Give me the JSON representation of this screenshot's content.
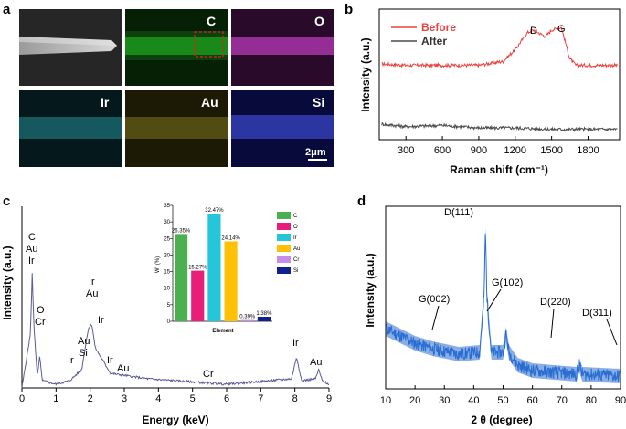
{
  "panels": {
    "a": "a",
    "b": "b",
    "c": "c",
    "d": "d"
  },
  "colors": {
    "raman_before": "#e8433f",
    "raman_after": "#4a4a4a",
    "xrd": "#2a6dd2"
  },
  "panel_a": {
    "maps": [
      {
        "label": "",
        "kind": "sem"
      },
      {
        "label": "C",
        "kind": "green"
      },
      {
        "label": "O",
        "kind": "magenta"
      },
      {
        "label": "Ir",
        "kind": "cyan"
      },
      {
        "label": "Au",
        "kind": "yellow"
      },
      {
        "label": "Si",
        "kind": "blue"
      }
    ],
    "scale_bar": "2μm"
  },
  "chart_data": [
    {
      "id": "b",
      "type": "line",
      "title": "",
      "xlabel": "Raman shift (cm⁻¹)",
      "ylabel": "Intensity (a.u.)",
      "xlim": [
        80,
        2060
      ],
      "ylim": [
        0,
        1
      ],
      "xticks": [
        300,
        600,
        900,
        1200,
        1500,
        1800
      ],
      "legend": [
        "Before",
        "After"
      ],
      "legend_position": "top-left",
      "annotations": [
        "D",
        "G"
      ],
      "series": [
        {
          "name": "Before",
          "x": [
            100,
            300,
            600,
            900,
            1100,
            1200,
            1300,
            1350,
            1450,
            1500,
            1580,
            1650,
            1700,
            1800,
            2000
          ],
          "y": [
            0.58,
            0.57,
            0.57,
            0.57,
            0.6,
            0.69,
            0.82,
            0.84,
            0.79,
            0.84,
            0.86,
            0.62,
            0.57,
            0.57,
            0.57
          ]
        },
        {
          "name": "After",
          "x": [
            100,
            300,
            600,
            900,
            1200,
            1500,
            1800,
            2000
          ],
          "y": [
            0.12,
            0.1,
            0.11,
            0.09,
            0.09,
            0.08,
            0.08,
            0.08
          ]
        }
      ]
    },
    {
      "id": "c",
      "type": "line",
      "title": "",
      "xlabel": "Energy (keV)",
      "ylabel": "Intensity (a.u.)",
      "xlim": [
        0,
        9
      ],
      "ylim": [
        0,
        1
      ],
      "xticks": [
        0,
        1,
        2,
        3,
        4,
        5,
        6,
        7,
        8,
        9
      ],
      "peak_labels": [
        "C",
        "Au",
        "Ir",
        "O",
        "Cr",
        "Ir",
        "Au",
        "Ir",
        "Au",
        "Si",
        "Ir",
        "Ir",
        "Au",
        "Cr",
        "Ir",
        "Au"
      ],
      "series": [
        {
          "name": "EDS",
          "x": [
            0.0,
            0.25,
            0.3,
            0.35,
            0.45,
            0.52,
            0.6,
            1.0,
            1.4,
            1.75,
            1.95,
            2.05,
            2.15,
            2.6,
            3.7,
            6.0,
            7.9,
            8.05,
            8.2,
            8.6,
            8.7,
            8.8,
            9.0
          ],
          "y": [
            0.0,
            0.3,
            0.63,
            0.35,
            0.06,
            0.17,
            0.04,
            0.02,
            0.04,
            0.1,
            0.33,
            0.35,
            0.22,
            0.08,
            0.05,
            0.02,
            0.05,
            0.17,
            0.04,
            0.05,
            0.1,
            0.04,
            0.02
          ]
        }
      ],
      "inset": {
        "type": "bar",
        "xlabel": "Element",
        "ylabel": "Wt (%)",
        "ylim": [
          0,
          35
        ],
        "yticks": [
          0,
          5,
          10,
          15,
          20,
          25,
          30,
          35
        ],
        "categories": [
          "C",
          "O",
          "Ir",
          "Au",
          "Cr",
          "Si"
        ],
        "values": [
          26.35,
          15.27,
          32.47,
          24.14,
          0.39,
          1.38
        ],
        "value_labels": [
          "26.35%",
          "15.27%",
          "32.47%",
          "24.14%",
          "0.39%",
          "1.38%"
        ],
        "colors": [
          "#4caf50",
          "#e91e7a",
          "#26c6da",
          "#ffc107",
          "#c58ee8",
          "#10208c"
        ],
        "legend_position": "right"
      }
    },
    {
      "id": "d",
      "type": "line",
      "title": "",
      "xlabel": "2 θ (degree)",
      "ylabel": "Intensity (a.u.)",
      "xlim": [
        10,
        90
      ],
      "ylim": [
        0,
        1
      ],
      "xticks": [
        10,
        20,
        30,
        40,
        50,
        60,
        70,
        80,
        90
      ],
      "annotations": [
        "G(002)",
        "D(111)",
        "G(102)",
        "D(220)",
        "D(311)"
      ],
      "series": [
        {
          "name": "XRD",
          "x": [
            10,
            20,
            26,
            35,
            42,
            43.5,
            44,
            44.5,
            46,
            50,
            51,
            52,
            55,
            60,
            75,
            76,
            77,
            90
          ],
          "y": [
            0.33,
            0.25,
            0.22,
            0.19,
            0.2,
            0.5,
            0.88,
            0.5,
            0.2,
            0.2,
            0.3,
            0.2,
            0.13,
            0.1,
            0.08,
            0.13,
            0.08,
            0.07
          ]
        }
      ]
    }
  ]
}
